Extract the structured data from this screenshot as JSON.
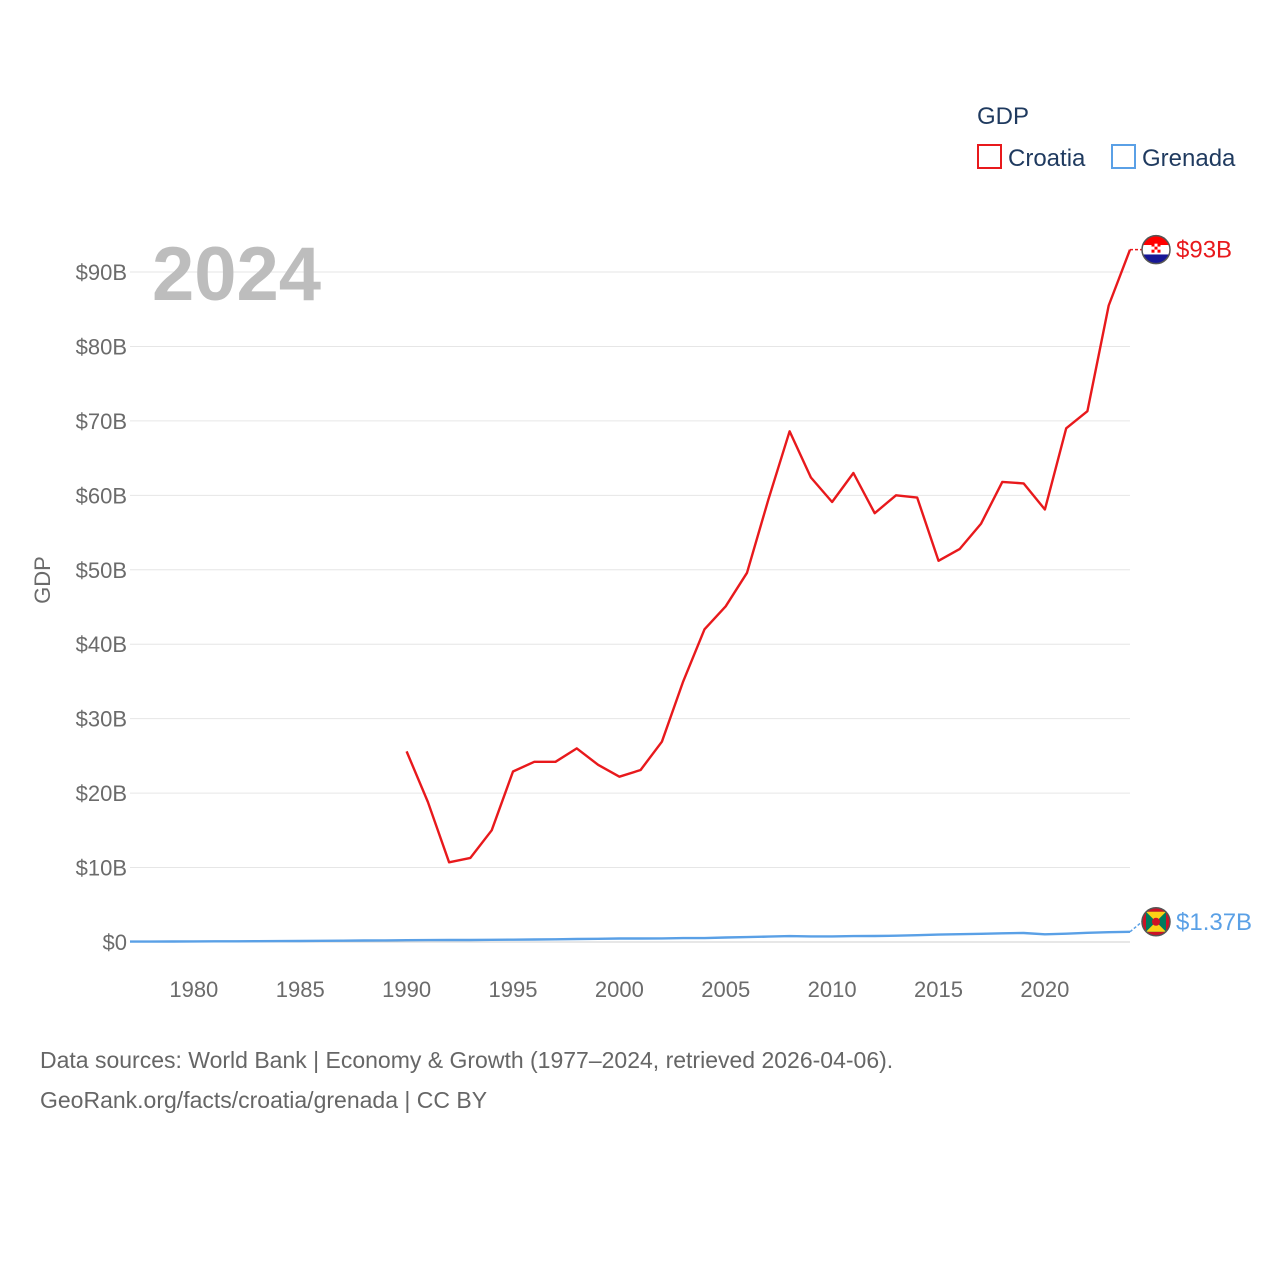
{
  "chart_data": {
    "type": "line",
    "ylabel": "GDP",
    "legend_title": "GDP",
    "highlight_year_label": "2024",
    "xlim": [
      1977,
      2024
    ],
    "ylim": [
      0,
      100
    ],
    "x_ticks": [
      1980,
      1985,
      1990,
      1995,
      2000,
      2005,
      2010,
      2015,
      2020
    ],
    "x_tick_labels": [
      "1980",
      "1985",
      "1990",
      "1995",
      "2000",
      "2005",
      "2010",
      "2015",
      "2020"
    ],
    "y_ticks": [
      0,
      10,
      20,
      30,
      40,
      50,
      60,
      70,
      80,
      90
    ],
    "y_tick_labels": [
      "$0",
      "$10B",
      "$20B",
      "$30B",
      "$40B",
      "$50B",
      "$60B",
      "$70B",
      "$80B",
      "$90B"
    ],
    "y_unit": "billion USD",
    "series": [
      {
        "name": "Croatia",
        "color": "#e8191c",
        "end_label": "$93B",
        "flag_icon": "croatia-flag-icon",
        "x": [
          1990,
          1991,
          1992,
          1993,
          1994,
          1995,
          1996,
          1997,
          1998,
          1999,
          2000,
          2001,
          2002,
          2003,
          2004,
          2005,
          2006,
          2007,
          2008,
          2009,
          2010,
          2011,
          2012,
          2013,
          2014,
          2015,
          2016,
          2017,
          2018,
          2019,
          2020,
          2021,
          2022,
          2023,
          2024
        ],
        "values": [
          25.6,
          18.8,
          10.7,
          11.3,
          15.0,
          22.9,
          24.2,
          24.2,
          26.0,
          23.8,
          22.2,
          23.1,
          26.9,
          35.0,
          42.0,
          45.1,
          49.6,
          59.4,
          68.6,
          62.4,
          59.1,
          63.0,
          57.6,
          60.0,
          59.7,
          51.2,
          52.8,
          56.2,
          61.8,
          61.6,
          58.1,
          69.0,
          71.3,
          85.5,
          93.0
        ]
      },
      {
        "name": "Grenada",
        "color": "#5aa0e6",
        "end_label": "$1.37B",
        "flag_icon": "grenada-flag-icon",
        "x": [
          1977,
          1978,
          1979,
          1980,
          1981,
          1982,
          1983,
          1984,
          1985,
          1986,
          1987,
          1988,
          1989,
          1990,
          1991,
          1992,
          1993,
          1994,
          1995,
          1996,
          1997,
          1998,
          1999,
          2000,
          2001,
          2002,
          2003,
          2004,
          2005,
          2006,
          2007,
          2008,
          2009,
          2010,
          2011,
          2012,
          2013,
          2014,
          2015,
          2016,
          2017,
          2018,
          2019,
          2020,
          2021,
          2022,
          2023,
          2024
        ],
        "values": [
          0.05,
          0.06,
          0.07,
          0.08,
          0.09,
          0.1,
          0.11,
          0.12,
          0.14,
          0.16,
          0.18,
          0.2,
          0.22,
          0.24,
          0.26,
          0.27,
          0.27,
          0.29,
          0.31,
          0.34,
          0.36,
          0.4,
          0.43,
          0.47,
          0.47,
          0.48,
          0.52,
          0.53,
          0.61,
          0.66,
          0.73,
          0.79,
          0.75,
          0.75,
          0.79,
          0.8,
          0.84,
          0.91,
          0.99,
          1.05,
          1.1,
          1.17,
          1.21,
          1.04,
          1.12,
          1.23,
          1.32,
          1.37
        ]
      }
    ]
  },
  "footer": {
    "line1": "Data sources: World Bank | Economy & Growth (1977–2024, retrieved 2026-04-06).",
    "line2": "GeoRank.org/facts/croatia/grenada | CC BY"
  }
}
